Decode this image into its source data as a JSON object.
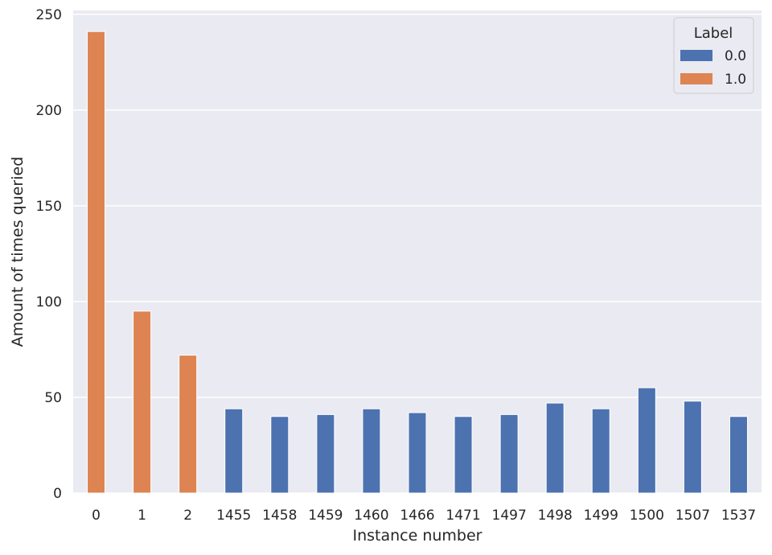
{
  "chart_data": {
    "type": "bar",
    "categories": [
      "0",
      "1",
      "2",
      "1455",
      "1458",
      "1459",
      "1460",
      "1466",
      "1471",
      "1497",
      "1498",
      "1499",
      "1500",
      "1507",
      "1537"
    ],
    "series": [
      {
        "name": "0.0",
        "color": "#4c72b0",
        "values": [
          0,
          0,
          0,
          44,
          40,
          41,
          44,
          42,
          40,
          41,
          47,
          44,
          55,
          48,
          40
        ]
      },
      {
        "name": "1.0",
        "color": "#dd8452",
        "values": [
          241,
          95,
          72,
          0,
          0,
          0,
          0,
          0,
          0,
          0,
          0,
          0,
          0,
          0,
          0
        ]
      }
    ],
    "title": "",
    "xlabel": "Instance number",
    "ylabel": "Amount of times queried",
    "ylim": [
      0,
      252
    ],
    "yticks": [
      0,
      50,
      100,
      150,
      200,
      250
    ],
    "grid": true,
    "legend": {
      "title": "Label",
      "placement": "top-right"
    },
    "background": "#eaeaf2"
  }
}
